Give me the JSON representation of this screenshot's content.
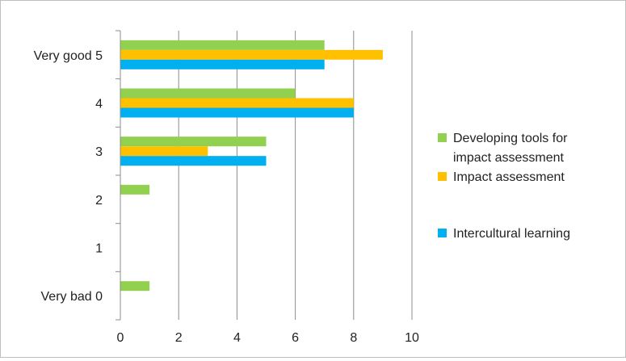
{
  "chart_data": {
    "type": "bar",
    "orientation": "horizontal",
    "title": "",
    "xlabel": "",
    "ylabel": "",
    "categories": [
      "Very bad 0",
      "1",
      "2",
      "3",
      "4",
      "Very good 5"
    ],
    "xlim": [
      0,
      10
    ],
    "x_ticks": [
      "0",
      "2",
      "4",
      "6",
      "8",
      "10"
    ],
    "grid": "vertical",
    "legend_position": "right",
    "series": [
      {
        "name": "Developing tools for impact assessment",
        "name_lines": [
          "Developing tools for",
          "impact assessment"
        ],
        "color": "#92d050",
        "values": [
          1,
          0,
          1,
          5,
          6,
          7
        ]
      },
      {
        "name": "Impact assessment",
        "name_lines": [
          "Impact assessment"
        ],
        "color": "#ffc000",
        "values": [
          0,
          0,
          0,
          3,
          8,
          9
        ]
      },
      {
        "name": "Intercultural learning",
        "name_lines": [
          "Intercultural learning"
        ],
        "color": "#00b0f0",
        "values": [
          0,
          0,
          0,
          5,
          8,
          7
        ]
      }
    ]
  }
}
